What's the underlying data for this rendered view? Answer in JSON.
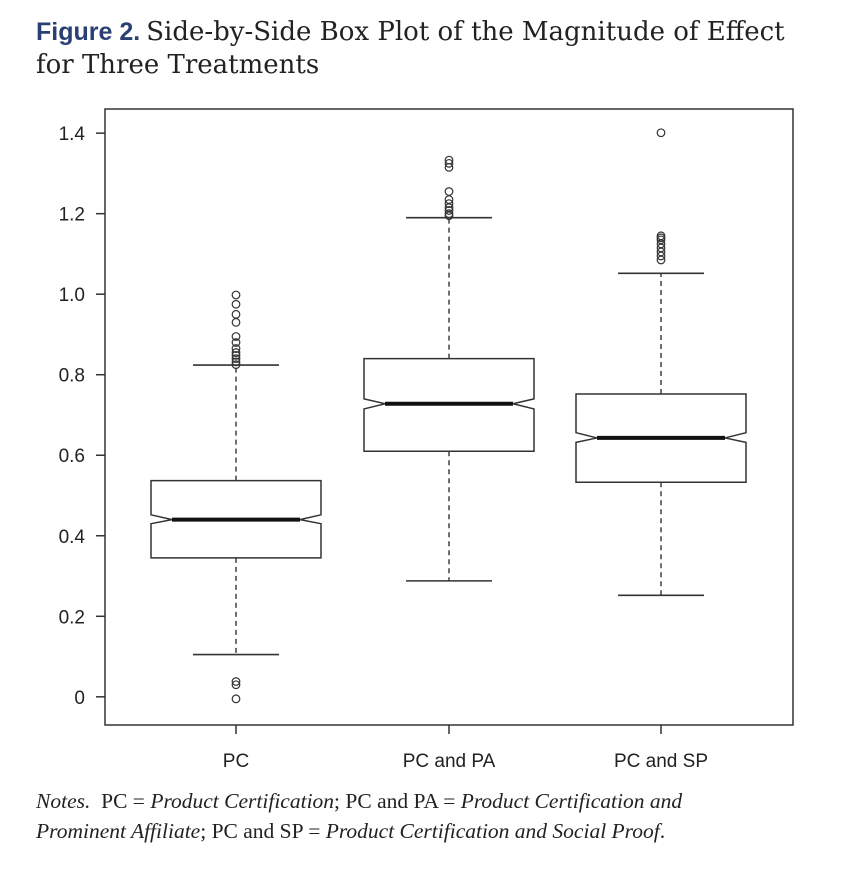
{
  "caption": {
    "figure_label": "Figure 2.",
    "title_line1": "Side-by-Side Box Plot of the Magnitude of Effect",
    "title_line2": "for Three Treatments"
  },
  "notes": {
    "lead": "Notes.",
    "pc_abbr": "PC",
    "eq": "=",
    "pc_full": "Product Certification",
    "sep": ";",
    "pcpa_abbr": "PC and PA",
    "pcpa_full_line1": "Product Certification and",
    "pcpa_full_line2": "Prominent Affiliate",
    "pcsp_abbr": "PC and SP",
    "pcsp_full": "Product Certification and Social Proof",
    "end": "."
  },
  "chart_data": {
    "type": "box",
    "notched": true,
    "title": "",
    "xlabel": "",
    "ylabel": "",
    "ylim": [
      -0.07,
      1.46
    ],
    "yticks": [
      0,
      0.2,
      0.4,
      0.6,
      0.8,
      1.0,
      1.2,
      1.4
    ],
    "ytick_labels": [
      "0",
      "0.2",
      "0.4",
      "0.6",
      "0.8",
      "1.0",
      "1.2",
      "1.4"
    ],
    "categories": [
      "PC",
      "PC and PA",
      "PC and SP"
    ],
    "boxes": [
      {
        "name": "PC",
        "whisker_low": 0.105,
        "q1": 0.345,
        "notch_low": 0.43,
        "median": 0.44,
        "notch_high": 0.452,
        "q3": 0.537,
        "whisker_high": 0.824,
        "outliers": [
          -0.005,
          0.03,
          0.038,
          0.825,
          0.832,
          0.84,
          0.848,
          0.855,
          0.865,
          0.88,
          0.895,
          0.93,
          0.95,
          0.975,
          0.998
        ]
      },
      {
        "name": "PC and PA",
        "whisker_low": 0.288,
        "q1": 0.61,
        "notch_low": 0.715,
        "median": 0.728,
        "notch_high": 0.74,
        "q3": 0.84,
        "whisker_high": 1.19,
        "outliers": [
          1.195,
          1.2,
          1.208,
          1.215,
          1.225,
          1.235,
          1.255,
          1.315,
          1.325,
          1.333
        ]
      },
      {
        "name": "PC and SP",
        "whisker_low": 0.252,
        "q1": 0.533,
        "notch_low": 0.632,
        "median": 0.643,
        "notch_high": 0.656,
        "q3": 0.752,
        "whisker_high": 1.052,
        "outliers": [
          1.085,
          1.095,
          1.105,
          1.115,
          1.125,
          1.135,
          1.14,
          1.145,
          1.401
        ]
      }
    ]
  }
}
